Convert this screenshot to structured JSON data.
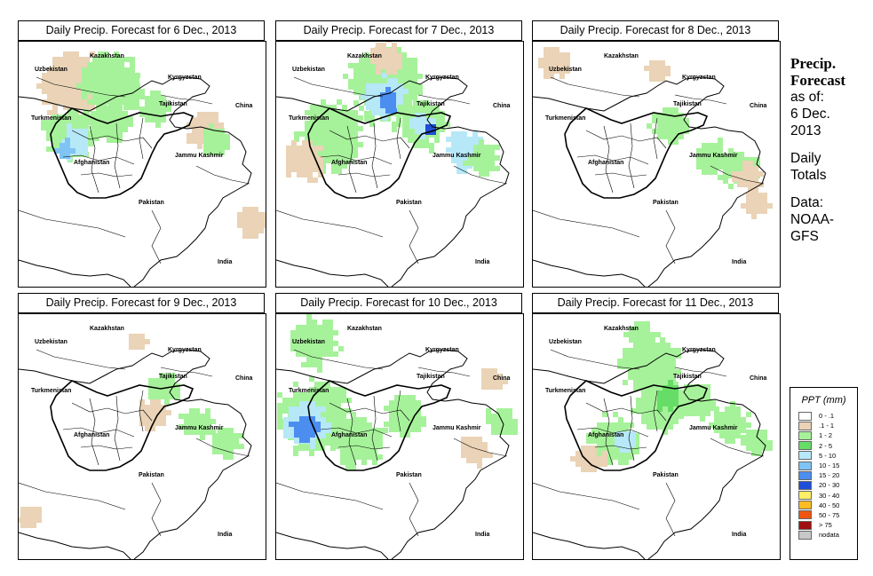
{
  "panels": [
    {
      "title": "Daily Precip. Forecast for  6 Dec., 2013"
    },
    {
      "title": "Daily Precip. Forecast for  7 Dec., 2013"
    },
    {
      "title": "Daily Precip. Forecast for  8 Dec., 2013"
    },
    {
      "title": "Daily Precip. Forecast for  9 Dec., 2013"
    },
    {
      "title": "Daily Precip. Forecast for  10 Dec., 2013"
    },
    {
      "title": "Daily Precip. Forecast for  11 Dec., 2013"
    }
  ],
  "map_labels": {
    "kazakhstan": "Kazakhstan",
    "uzbekistan": "Uzbekistan",
    "kyrgyzstan": "Kyrgyzstan",
    "tajikistan": "Tajikistan",
    "turkmenistan": "Turkmenistan",
    "china": "China",
    "afghanistan": "Afghanistan",
    "jammu_kashmir": "Jammu Kashmir",
    "pakistan": "Pakistan",
    "india": "India"
  },
  "sidebar": {
    "title_line1": "Precip.",
    "title_line2": "Forecast",
    "asof_line1": "as of:",
    "asof_line2": "6 Dec.",
    "asof_line3": "2013",
    "totals_line1": "Daily",
    "totals_line2": "Totals",
    "data_line1": "Data:",
    "data_line2": "NOAA-",
    "data_line3": "GFS"
  },
  "legend": {
    "title": "PPT (mm)",
    "items": [
      {
        "label": "0 - .1",
        "color": "#ffffff"
      },
      {
        "label": ".1 - 1",
        "color": "#ead3b6"
      },
      {
        "label": "1 - 2",
        "color": "#a6f29a"
      },
      {
        "label": "2 - 5",
        "color": "#66dd66"
      },
      {
        "label": "5 - 10",
        "color": "#b6e8f8"
      },
      {
        "label": "10 - 15",
        "color": "#7fc4f4"
      },
      {
        "label": "15 - 20",
        "color": "#4c8ef0"
      },
      {
        "label": "20 - 30",
        "color": "#1f4fd8"
      },
      {
        "label": "30 - 40",
        "color": "#ffee66"
      },
      {
        "label": "40 - 50",
        "color": "#ffbb22"
      },
      {
        "label": "50 - 75",
        "color": "#ee5511"
      },
      {
        "label": "> 75",
        "color": "#a01010"
      },
      {
        "label": "nodata",
        "color": "#c8c8c8"
      }
    ]
  }
}
